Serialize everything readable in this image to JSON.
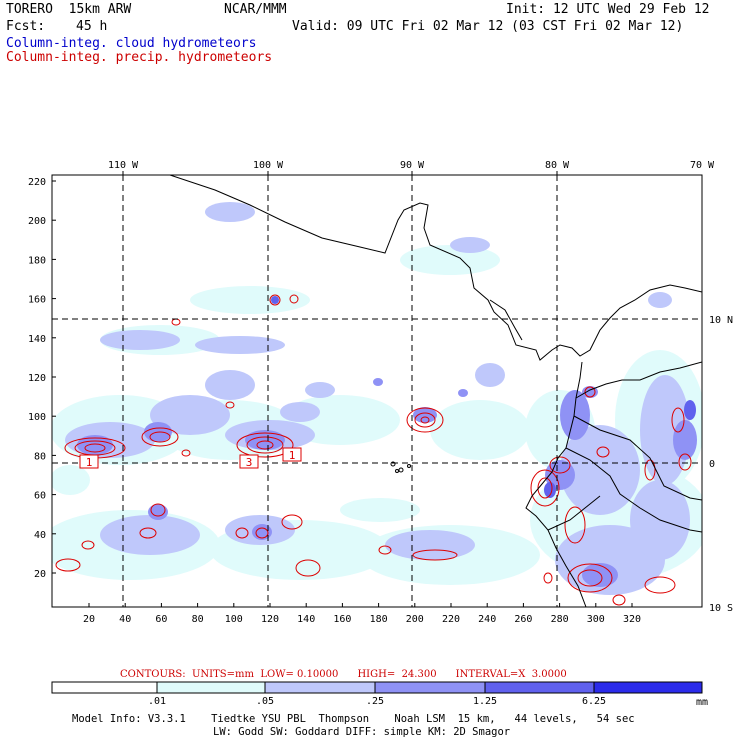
{
  "header": {
    "model": "TORERO  15km ARW",
    "org": "NCAR/MMM",
    "init": "Init: 12 UTC Wed 29 Feb 12",
    "fcst_label": "Fcst:",
    "fcst_value": "45 h",
    "valid": "Valid: 09 UTC Fri 02 Mar 12 (03 CST Fri 02 Mar 12)",
    "field_cloud": "Column-integ. cloud hydrometeors",
    "field_precip": "Column-integ. precip. hydrometeors",
    "color_cloud_label": "#0000cc",
    "color_precip_label": "#cc0000"
  },
  "map": {
    "lon_labels": [
      "110 W",
      "100 W",
      "90 W",
      "80 W",
      "70 W"
    ],
    "lat_labels": [
      "10 N",
      "0",
      "10 S"
    ],
    "y_ticks": [
      "220",
      "200",
      "180",
      "160",
      "140",
      "120",
      "100",
      "80",
      "60",
      "40",
      "20"
    ],
    "x_ticks": [
      "20",
      "40",
      "60",
      "80",
      "100",
      "120",
      "140",
      "160",
      "180",
      "200",
      "220",
      "240",
      "260",
      "280",
      "300",
      "320"
    ],
    "box_labels": [
      "1",
      "3",
      "1"
    ]
  },
  "contour_info": {
    "text": "CONTOURS:  UNITS=mm  LOW= 0.10000      HIGH=  24.300      INTERVAL=X  3.0000",
    "color": "#cc0000"
  },
  "colorbar": {
    "labels": [
      ".01",
      ".05",
      ".25",
      "1.25",
      "6.25"
    ],
    "units": "mm",
    "colors": [
      "#ffffff",
      "#e0fbfb",
      "#bfc8fb",
      "#8f92f5",
      "#6061ee",
      "#2b2bea"
    ]
  },
  "footer": {
    "line1": "Model Info: V3.3.1    Tiedtke YSU PBL  Thompson    Noah LSM  15 km,   44 levels,   54 sec",
    "line2": "LW: Godd SW: Goddard DIFF: simple KM: 2D Smagor"
  }
}
